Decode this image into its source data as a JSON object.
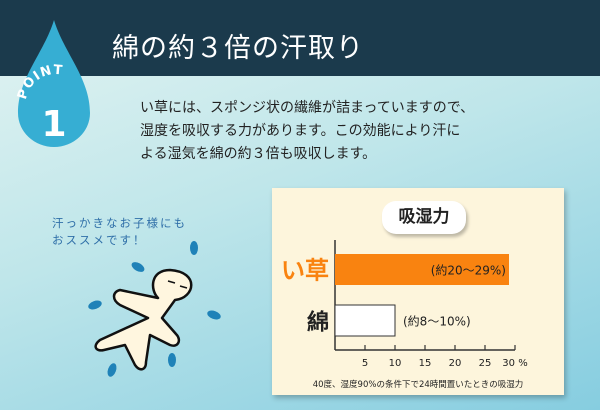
{
  "header": {
    "title": "綿の約３倍の汗取り",
    "badge_label": "POINT",
    "badge_number": "1"
  },
  "body_lines": [
    "い草には、スポンジ状の繊維が詰まっていますので、",
    "湿度を吸収する力があります。この効能により汗に",
    "よる湿気を綿の約３倍も吸収します。"
  ],
  "note_lines": [
    "汗っかきなお子様にも",
    "おススメです！"
  ],
  "chart_data": {
    "type": "bar",
    "orientation": "horizontal",
    "title": "吸湿力",
    "categories": [
      "い草",
      "綿"
    ],
    "ranges": [
      [
        20,
        29
      ],
      [
        8,
        10
      ]
    ],
    "data_labels": [
      "(約20～29%)",
      "(約8～10%)"
    ],
    "xlim": [
      0,
      30
    ],
    "xticks": [
      5,
      10,
      15,
      20,
      25,
      30
    ],
    "xunit": "%",
    "caption": "40度、湿度90%の条件下で24時間置いたときの吸湿力",
    "colors": [
      "#f98310",
      "#ffffff"
    ],
    "category_colors": [
      "#f98310",
      "#222222"
    ],
    "grid": false
  }
}
